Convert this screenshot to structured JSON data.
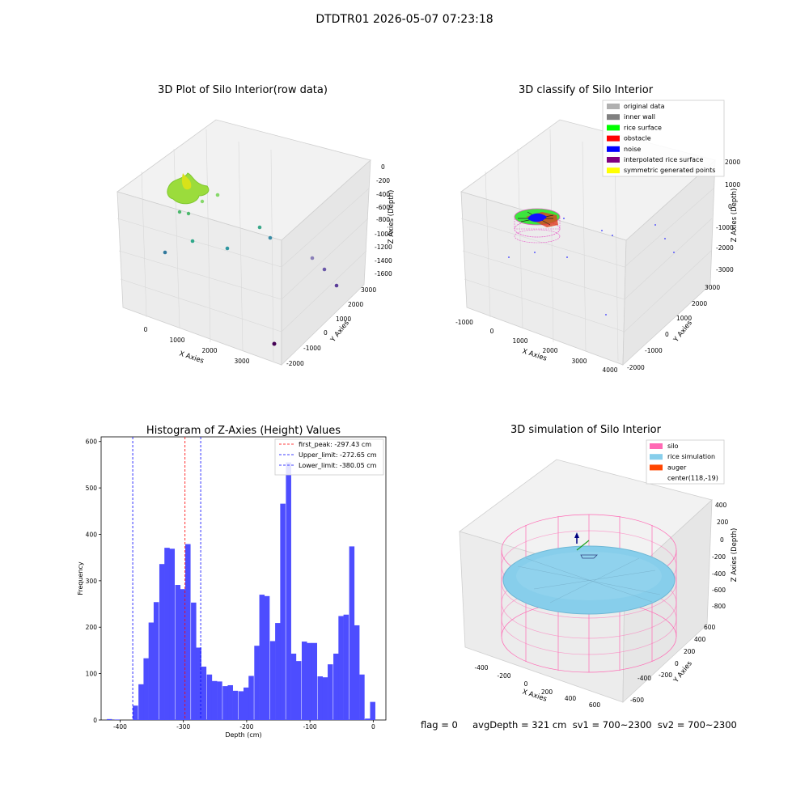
{
  "suptitle": "DTDTR01 2026-05-07 07:23:18",
  "status_line": "flag = 0     avgDepth = 321 cm  sv1 = 700~2300  sv2 = 700~2300",
  "panels": {
    "raw": {
      "title": "3D Plot of Silo Interior(row data)",
      "xlabel": "X Axies",
      "ylabel": "Y Axies",
      "zlabel": "Z Axies (Depth)",
      "xticks": [
        "0",
        "1000",
        "2000",
        "3000"
      ],
      "yticks": [
        "-2000",
        "-1000",
        "0",
        "1000",
        "2000",
        "3000"
      ],
      "zticks": [
        "0",
        "-200",
        "-400",
        "-600",
        "-800",
        "-1000",
        "-1200",
        "-1400",
        "-1600"
      ]
    },
    "classify": {
      "title": "3D classify of Silo Interior",
      "xlabel": "X Axies",
      "ylabel": "Y Axies",
      "zlabel": "Z Axies (Depth)",
      "xticks": [
        "-1000",
        "0",
        "1000",
        "2000",
        "3000",
        "4000"
      ],
      "yticks": [
        "-2000",
        "-1000",
        "0",
        "1000",
        "2000",
        "3000"
      ],
      "zticks": [
        "2000",
        "1000",
        "0",
        "-1000",
        "-2000",
        "-3000"
      ],
      "legend": [
        {
          "label": "original data",
          "color": "#b0b0b0"
        },
        {
          "label": "inner wall",
          "color": "#808080"
        },
        {
          "label": "rice surface",
          "color": "#00ff00"
        },
        {
          "label": "obstacle",
          "color": "#ff0000"
        },
        {
          "label": "noise",
          "color": "#0000ff"
        },
        {
          "label": "interpolated rice surface",
          "color": "#800080"
        },
        {
          "label": "symmetric generated points",
          "color": "#ffff00"
        }
      ]
    },
    "simulation": {
      "title": "3D simulation of Silo Interior",
      "xlabel": "X Axies",
      "ylabel": "Y Axies",
      "zlabel": "Z Axies (Depth)",
      "xticks": [
        "-400",
        "-200",
        "0",
        "200",
        "400",
        "600"
      ],
      "yticks": [
        "-600",
        "-400",
        "-200",
        "0",
        "200",
        "400",
        "600"
      ],
      "zticks": [
        "400",
        "200",
        "0",
        "-200",
        "-400",
        "-600",
        "-800"
      ],
      "legend": [
        {
          "label": "silo",
          "color": "#ff69b4"
        },
        {
          "label": "rice simulation",
          "color": "#87ceeb"
        },
        {
          "label": "auger",
          "color": "#ff4500"
        },
        {
          "label": "center(118,-19)",
          "color": ""
        }
      ]
    }
  },
  "chart_data": {
    "type": "bar",
    "title": "Histogram of Z-Axies (Height) Values",
    "xlabel": "Depth (cm)",
    "ylabel": "Frequency",
    "xlim": [
      -430,
      20
    ],
    "ylim": [
      0,
      610
    ],
    "xticks": [
      -400,
      -300,
      -200,
      -100,
      0
    ],
    "yticks": [
      0,
      100,
      200,
      300,
      400,
      500,
      600
    ],
    "bar_color": "#4d4dff",
    "bin_width": 8.34,
    "bins": [
      [
        -421,
        2
      ],
      [
        -409,
        1
      ],
      [
        -380,
        31
      ],
      [
        -371,
        77
      ],
      [
        -363,
        133
      ],
      [
        -355,
        210
      ],
      [
        -347,
        254
      ],
      [
        -338,
        336
      ],
      [
        -330,
        371
      ],
      [
        -322,
        369
      ],
      [
        -313,
        291
      ],
      [
        -305,
        282
      ],
      [
        -297,
        379
      ],
      [
        -288,
        253
      ],
      [
        -280,
        156
      ],
      [
        -272,
        115
      ],
      [
        -263,
        98
      ],
      [
        -255,
        84
      ],
      [
        -247,
        83
      ],
      [
        -238,
        73
      ],
      [
        -230,
        75
      ],
      [
        -222,
        63
      ],
      [
        -213,
        62
      ],
      [
        -205,
        70
      ],
      [
        -197,
        95
      ],
      [
        -188,
        160
      ],
      [
        -180,
        270
      ],
      [
        -172,
        267
      ],
      [
        -163,
        170
      ],
      [
        -155,
        209
      ],
      [
        -147,
        466
      ],
      [
        -138,
        555
      ],
      [
        -130,
        143
      ],
      [
        -122,
        127
      ],
      [
        -113,
        169
      ],
      [
        -105,
        166
      ],
      [
        -97,
        166
      ],
      [
        -88,
        94
      ],
      [
        -80,
        92
      ],
      [
        -72,
        120
      ],
      [
        -63,
        143
      ],
      [
        -55,
        224
      ],
      [
        -47,
        227
      ],
      [
        -38,
        374
      ],
      [
        -30,
        204
      ],
      [
        -22,
        98
      ],
      [
        -13,
        3
      ],
      [
        -5,
        39
      ]
    ],
    "lines": [
      {
        "label": "first_peak: -297.43 cm",
        "x": -297.43,
        "color": "#ff0000"
      },
      {
        "label": "Upper_limit: -272.65 cm",
        "x": -272.65,
        "color": "#0000ff"
      },
      {
        "label": "Lower_limit: -380.05 cm",
        "x": -380.05,
        "color": "#0000ff"
      }
    ]
  }
}
